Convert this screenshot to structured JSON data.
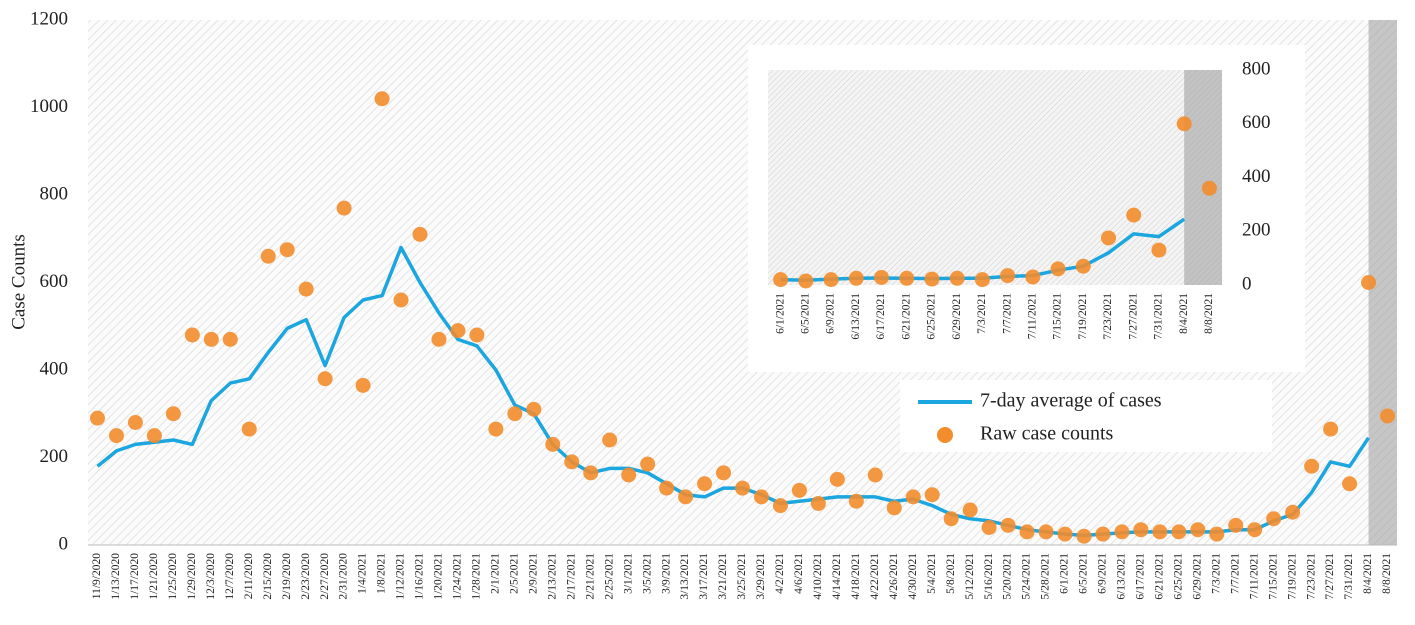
{
  "chart_data": [
    {
      "type": "combo",
      "y_label": "Case Counts",
      "categories": [
        "11/9/2020",
        "1/13/2020",
        "1/17/2020",
        "1/21/2020",
        "1/25/2020",
        "1/29/2020",
        "12/3/2020",
        "12/7/2020",
        "2/11/2020",
        "2/15/2020",
        "2/19/2020",
        "2/23/2020",
        "2/27/2020",
        "2/31/2020",
        "1/4/2021",
        "1/8/2021",
        "1/12/2021",
        "1/16/2021",
        "1/20/2021",
        "1/24/2021",
        "1/28/2021",
        "2/1/2021",
        "2/5/2021",
        "2/9/2021",
        "2/13/2021",
        "2/17/2021",
        "2/21/2021",
        "2/25/2021",
        "3/1/2021",
        "3/5/2021",
        "3/9/2021",
        "3/13/2021",
        "3/17/2021",
        "3/21/2021",
        "3/25/2021",
        "3/29/2021",
        "4/2/2021",
        "4/6/2021",
        "4/10/2021",
        "4/14/2021",
        "4/18/2021",
        "4/22/2021",
        "4/26/2021",
        "4/30/2021",
        "5/4/2021",
        "5/8/2021",
        "5/12/2021",
        "5/16/2021",
        "5/20/2021",
        "5/24/2021",
        "5/28/2021",
        "6/1/2021",
        "6/5/2021",
        "6/9/2021",
        "6/13/2021",
        "6/17/2021",
        "6/21/2021",
        "6/25/2021",
        "6/29/2021",
        "7/3/2021",
        "7/7/2021",
        "7/11/2021",
        "7/15/2021",
        "7/19/2021",
        "7/23/2021",
        "7/27/2021",
        "7/31/2021",
        "8/4/2021",
        "8/8/2021"
      ],
      "series": [
        {
          "name": "7-day average of cases",
          "type": "line",
          "color": "#1ba6df",
          "values": [
            180,
            215,
            230,
            235,
            240,
            230,
            330,
            370,
            380,
            440,
            495,
            515,
            410,
            520,
            560,
            570,
            680,
            600,
            530,
            470,
            455,
            400,
            320,
            300,
            230,
            190,
            165,
            175,
            175,
            165,
            140,
            115,
            110,
            130,
            130,
            115,
            95,
            100,
            105,
            110,
            110,
            110,
            100,
            105,
            90,
            70,
            60,
            55,
            45,
            35,
            30,
            25,
            22,
            25,
            28,
            30,
            30,
            30,
            30,
            30,
            35,
            35,
            55,
            70,
            120,
            190,
            180,
            245,
            null
          ]
        },
        {
          "name": "Raw case counts",
          "type": "scatter",
          "color": "#f28c2c",
          "values": [
            290,
            250,
            280,
            250,
            300,
            480,
            470,
            470,
            265,
            660,
            675,
            585,
            380,
            770,
            365,
            1020,
            560,
            710,
            470,
            490,
            480,
            265,
            300,
            310,
            230,
            190,
            165,
            240,
            160,
            185,
            130,
            110,
            140,
            165,
            130,
            110,
            90,
            125,
            95,
            150,
            100,
            160,
            85,
            110,
            115,
            60,
            80,
            40,
            45,
            30,
            30,
            25,
            20,
            25,
            30,
            35,
            30,
            30,
            35,
            25,
            45,
            35,
            60,
            75,
            180,
            265,
            140,
            600,
            295
          ]
        }
      ],
      "ylim": [
        0,
        1200
      ],
      "yticks": [
        0,
        200,
        400,
        600,
        800,
        1000,
        1200
      ]
    },
    {
      "type": "combo",
      "categories": [
        "6/1/2021",
        "6/5/2021",
        "6/9/2021",
        "6/13/2021",
        "6/17/2021",
        "6/21/2021",
        "6/25/2021",
        "6/29/2021",
        "7/3/2021",
        "7/7/2021",
        "7/11/2021",
        "7/15/2021",
        "7/19/2021",
        "7/23/2021",
        "7/27/2021",
        "7/31/2021",
        "8/4/2021",
        "8/8/2021"
      ],
      "series": [
        {
          "type": "line",
          "color": "#1ba6df",
          "values": [
            20,
            18,
            22,
            25,
            26,
            25,
            24,
            25,
            25,
            32,
            35,
            55,
            70,
            120,
            190,
            180,
            245,
            null
          ]
        },
        {
          "type": "scatter",
          "color": "#f28c2c",
          "values": [
            20,
            15,
            20,
            25,
            28,
            25,
            22,
            25,
            20,
            35,
            30,
            60,
            70,
            175,
            260,
            130,
            600,
            360
          ]
        }
      ],
      "ylim": [
        0,
        800
      ],
      "yticks": [
        0,
        200,
        400,
        600,
        800
      ]
    }
  ]
}
